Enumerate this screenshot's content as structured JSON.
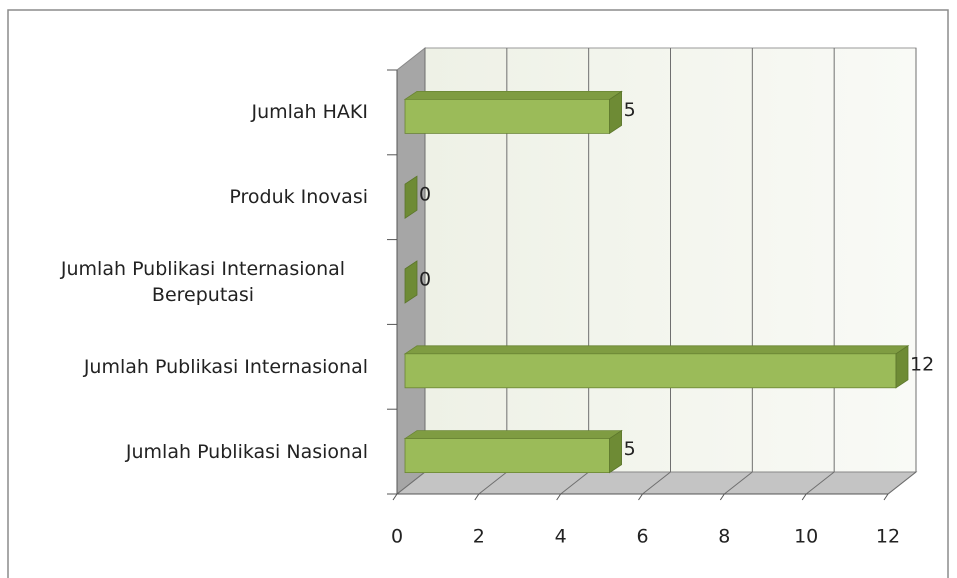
{
  "chart_data": {
    "type": "bar",
    "orientation": "horizontal",
    "categories": [
      "Jumlah HAKI",
      "Produk Inovasi",
      "Jumlah Publikasi Internasional Bereputasi",
      "Jumlah Publikasi Internasional",
      "Jumlah Publikasi Nasional"
    ],
    "values": [
      5,
      0,
      0,
      12,
      5
    ],
    "color": "#9bbb59",
    "xlim": [
      0,
      12
    ],
    "xticks": [
      0,
      2,
      4,
      6,
      8,
      10,
      12
    ],
    "grid": true
  }
}
